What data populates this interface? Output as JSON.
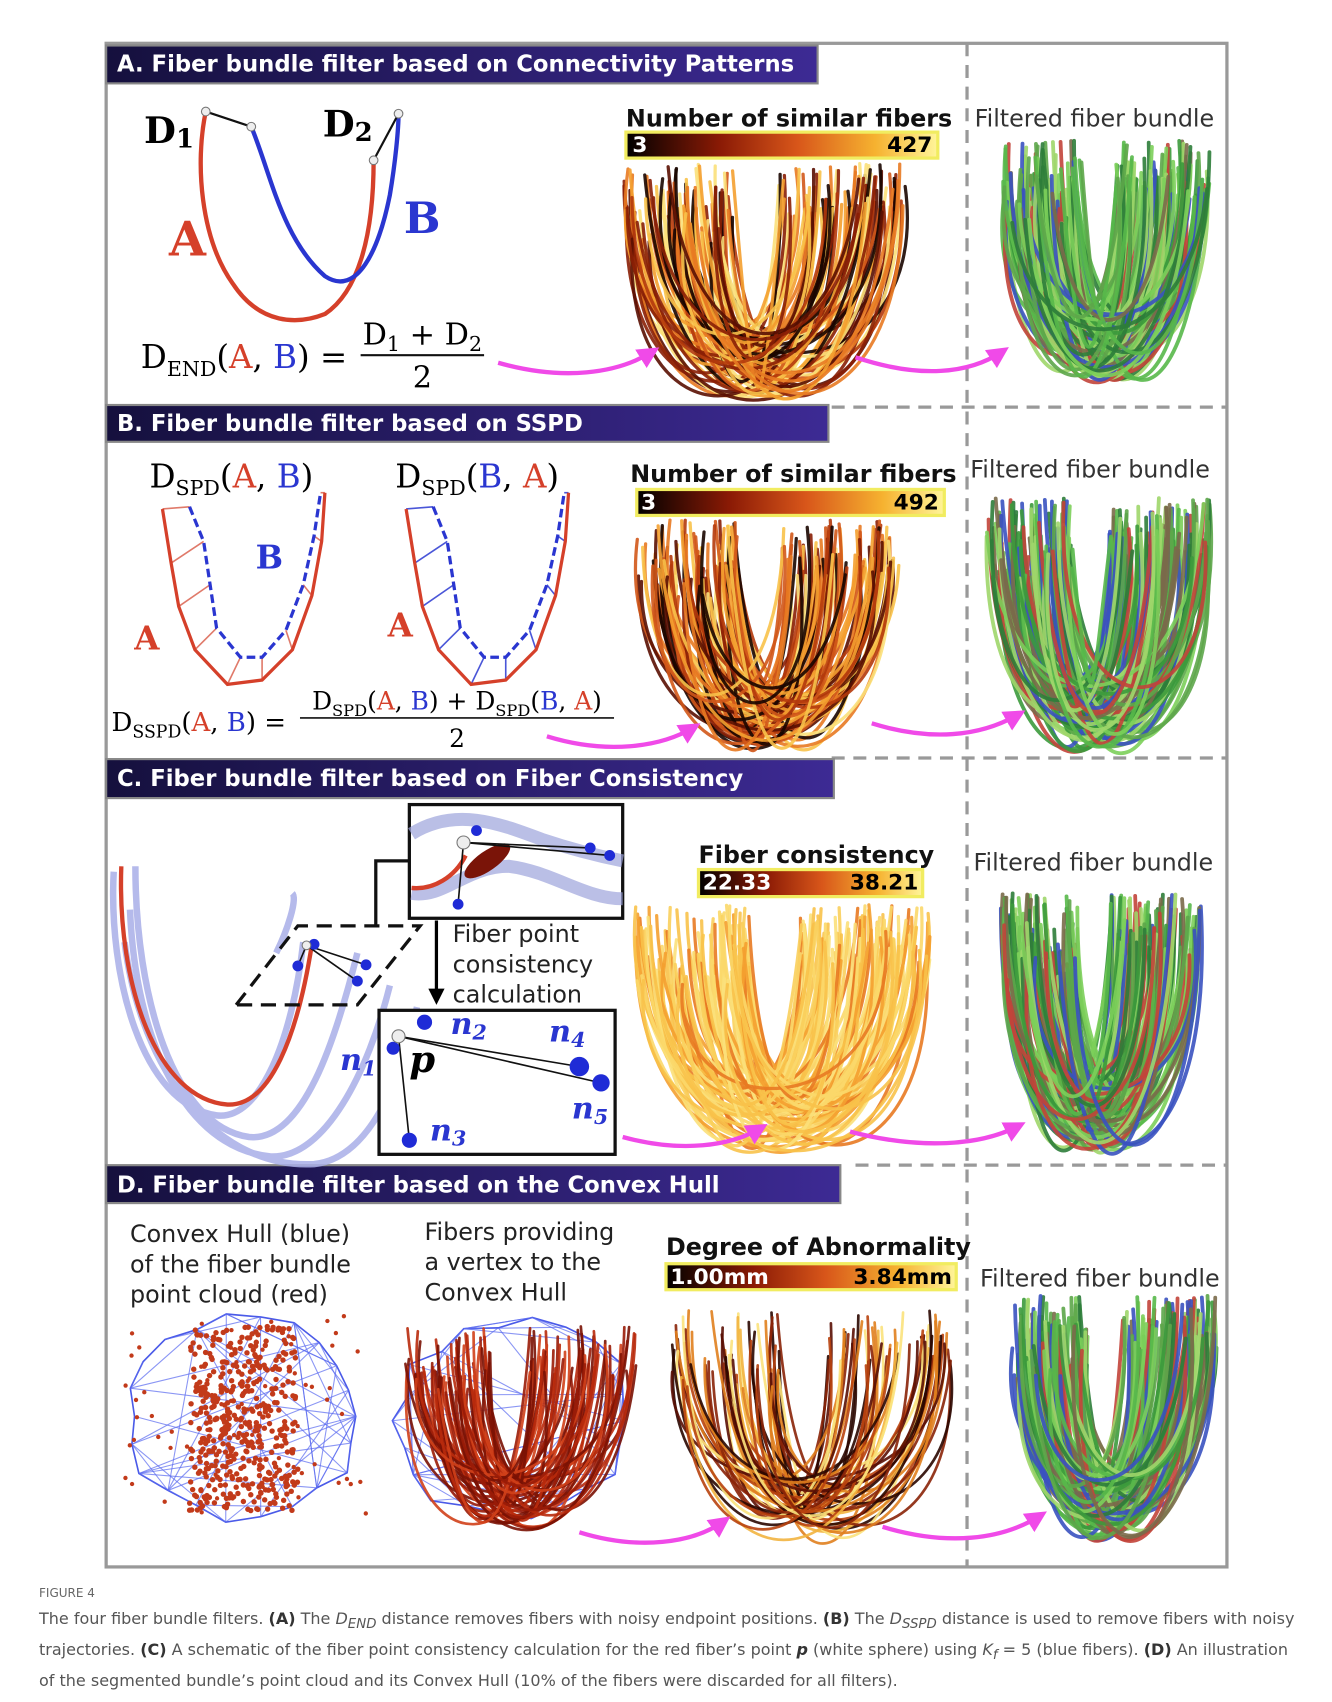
{
  "panel_a": {
    "title": "A.  Fiber bundle filter based on Connectivity Patterns",
    "d1": [
      "D",
      "1"
    ],
    "d2": [
      "D",
      "2"
    ],
    "label_a": "A",
    "label_b": "B",
    "formula": [
      "D",
      "END",
      "(",
      "A",
      ", ",
      "B",
      ") =",
      "D",
      "1",
      " + D",
      "2",
      "2"
    ],
    "colorbar_title": "Number of similar fibers",
    "colorbar_min": "3",
    "colorbar_max": "427",
    "filtered": "Filtered fiber bundle"
  },
  "panel_b": {
    "title": "B. Fiber bundle filter based on SSPD",
    "dspd_ab": [
      "D",
      "SPD",
      "(",
      "A",
      ", ",
      "B",
      ")"
    ],
    "dspd_ba": [
      "D",
      "SPD",
      "(",
      "B",
      ", ",
      "A",
      ")"
    ],
    "label_b": "B",
    "label_a_left": "A",
    "label_a_right": "A",
    "formula": [
      "D",
      "SSPD",
      "(",
      "A",
      ", ",
      "B",
      ") =",
      "D",
      "SPD",
      "(",
      "A",
      ", ",
      "B",
      ") + D",
      "SPD",
      "(",
      "B",
      ", ",
      "A",
      ")",
      "2"
    ],
    "colorbar_title": "Number of similar fibers",
    "colorbar_min": "3",
    "colorbar_max": "492",
    "filtered": "Filtered fiber bundle"
  },
  "panel_c": {
    "title": "C. Fiber bundle filter based on Fiber Consistency",
    "calc_lines": [
      "Fiber point",
      "consistency",
      "calculation"
    ],
    "n1": [
      "n",
      "1"
    ],
    "n2": [
      "n",
      "2"
    ],
    "n3": [
      "n",
      "3"
    ],
    "n4": [
      "n",
      "4"
    ],
    "n5": [
      "n",
      "5"
    ],
    "p": "p",
    "colorbar_title": "Fiber consistency",
    "colorbar_min": "22.33",
    "colorbar_max": "38.21",
    "filtered": "Filtered fiber bundle"
  },
  "panel_d": {
    "title": "D. Fiber bundle filter based on the Convex Hull",
    "hull_lines": [
      "Convex Hull (blue)",
      "of the fiber bundle",
      "point cloud (red)"
    ],
    "vertex_lines": [
      "Fibers providing",
      "a vertex to the",
      "Convex Hull"
    ],
    "colorbar_title": "Degree of Abnormality",
    "colorbar_min": "1.00mm",
    "colorbar_max": "3.84mm",
    "filtered": "Filtered fiber bundle"
  },
  "caption": {
    "label": "FIGURE 4",
    "parts": [
      "The four fiber bundle filters. ",
      "(A)",
      " The ",
      "D",
      "END",
      " distance removes fibers with noisy endpoint positions. ",
      "(B)",
      " The ",
      "D",
      "SSPD",
      " distance is used to remove fibers with noisy trajectories. ",
      "(C)",
      " A schematic of the fiber point consistency calculation for the red fiber’s point ",
      "p",
      " (white sphere) using ",
      "K",
      "f",
      " = 5 (blue fibers). ",
      "(D)",
      " An illustration of the segmented bundle’s point cloud and its Convex Hull (10% of the fibers were discarded for all filters)."
    ]
  }
}
